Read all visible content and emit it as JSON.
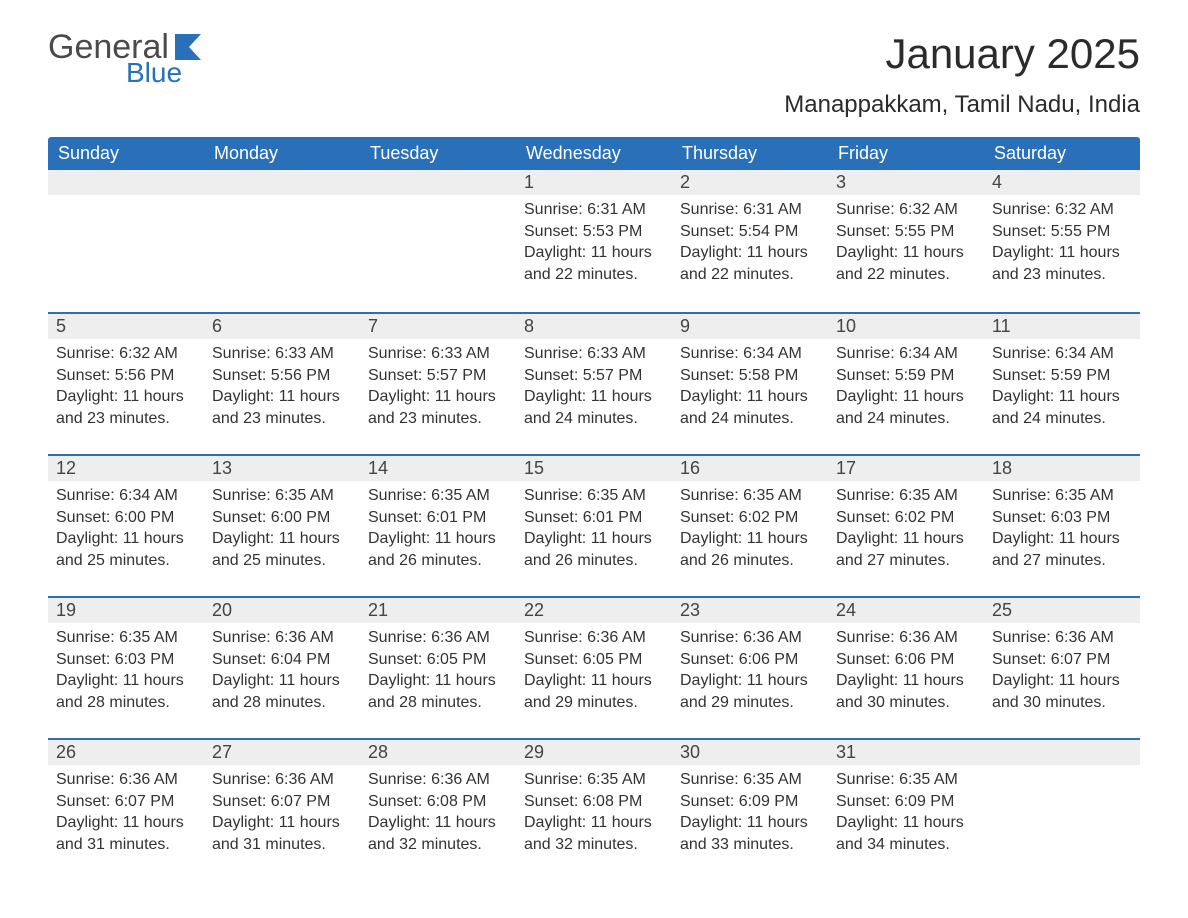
{
  "logo": {
    "main": "General",
    "sub": "Blue",
    "icon_color": "#2a70b8",
    "text_color": "#4a4a4a"
  },
  "title": "January 2025",
  "subtitle": "Manappakkam, Tamil Nadu, India",
  "colors": {
    "header_bg": "#2a70b8",
    "header_text": "#ffffff",
    "daynum_bg": "#eeeeee",
    "row_border": "#2a70b8",
    "body_text": "#333333",
    "page_bg": "#ffffff"
  },
  "fontsizes": {
    "title": 42,
    "subtitle": 24,
    "th": 18,
    "daynum": 18,
    "content": 16
  },
  "columns": [
    "Sunday",
    "Monday",
    "Tuesday",
    "Wednesday",
    "Thursday",
    "Friday",
    "Saturday"
  ],
  "weeks": [
    [
      null,
      null,
      null,
      {
        "d": "1",
        "sunrise": "Sunrise: 6:31 AM",
        "sunset": "Sunset: 5:53 PM",
        "day1": "Daylight: 11 hours",
        "day2": "and 22 minutes."
      },
      {
        "d": "2",
        "sunrise": "Sunrise: 6:31 AM",
        "sunset": "Sunset: 5:54 PM",
        "day1": "Daylight: 11 hours",
        "day2": "and 22 minutes."
      },
      {
        "d": "3",
        "sunrise": "Sunrise: 6:32 AM",
        "sunset": "Sunset: 5:55 PM",
        "day1": "Daylight: 11 hours",
        "day2": "and 22 minutes."
      },
      {
        "d": "4",
        "sunrise": "Sunrise: 6:32 AM",
        "sunset": "Sunset: 5:55 PM",
        "day1": "Daylight: 11 hours",
        "day2": "and 23 minutes."
      }
    ],
    [
      {
        "d": "5",
        "sunrise": "Sunrise: 6:32 AM",
        "sunset": "Sunset: 5:56 PM",
        "day1": "Daylight: 11 hours",
        "day2": "and 23 minutes."
      },
      {
        "d": "6",
        "sunrise": "Sunrise: 6:33 AM",
        "sunset": "Sunset: 5:56 PM",
        "day1": "Daylight: 11 hours",
        "day2": "and 23 minutes."
      },
      {
        "d": "7",
        "sunrise": "Sunrise: 6:33 AM",
        "sunset": "Sunset: 5:57 PM",
        "day1": "Daylight: 11 hours",
        "day2": "and 23 minutes."
      },
      {
        "d": "8",
        "sunrise": "Sunrise: 6:33 AM",
        "sunset": "Sunset: 5:57 PM",
        "day1": "Daylight: 11 hours",
        "day2": "and 24 minutes."
      },
      {
        "d": "9",
        "sunrise": "Sunrise: 6:34 AM",
        "sunset": "Sunset: 5:58 PM",
        "day1": "Daylight: 11 hours",
        "day2": "and 24 minutes."
      },
      {
        "d": "10",
        "sunrise": "Sunrise: 6:34 AM",
        "sunset": "Sunset: 5:59 PM",
        "day1": "Daylight: 11 hours",
        "day2": "and 24 minutes."
      },
      {
        "d": "11",
        "sunrise": "Sunrise: 6:34 AM",
        "sunset": "Sunset: 5:59 PM",
        "day1": "Daylight: 11 hours",
        "day2": "and 24 minutes."
      }
    ],
    [
      {
        "d": "12",
        "sunrise": "Sunrise: 6:34 AM",
        "sunset": "Sunset: 6:00 PM",
        "day1": "Daylight: 11 hours",
        "day2": "and 25 minutes."
      },
      {
        "d": "13",
        "sunrise": "Sunrise: 6:35 AM",
        "sunset": "Sunset: 6:00 PM",
        "day1": "Daylight: 11 hours",
        "day2": "and 25 minutes."
      },
      {
        "d": "14",
        "sunrise": "Sunrise: 6:35 AM",
        "sunset": "Sunset: 6:01 PM",
        "day1": "Daylight: 11 hours",
        "day2": "and 26 minutes."
      },
      {
        "d": "15",
        "sunrise": "Sunrise: 6:35 AM",
        "sunset": "Sunset: 6:01 PM",
        "day1": "Daylight: 11 hours",
        "day2": "and 26 minutes."
      },
      {
        "d": "16",
        "sunrise": "Sunrise: 6:35 AM",
        "sunset": "Sunset: 6:02 PM",
        "day1": "Daylight: 11 hours",
        "day2": "and 26 minutes."
      },
      {
        "d": "17",
        "sunrise": "Sunrise: 6:35 AM",
        "sunset": "Sunset: 6:02 PM",
        "day1": "Daylight: 11 hours",
        "day2": "and 27 minutes."
      },
      {
        "d": "18",
        "sunrise": "Sunrise: 6:35 AM",
        "sunset": "Sunset: 6:03 PM",
        "day1": "Daylight: 11 hours",
        "day2": "and 27 minutes."
      }
    ],
    [
      {
        "d": "19",
        "sunrise": "Sunrise: 6:35 AM",
        "sunset": "Sunset: 6:03 PM",
        "day1": "Daylight: 11 hours",
        "day2": "and 28 minutes."
      },
      {
        "d": "20",
        "sunrise": "Sunrise: 6:36 AM",
        "sunset": "Sunset: 6:04 PM",
        "day1": "Daylight: 11 hours",
        "day2": "and 28 minutes."
      },
      {
        "d": "21",
        "sunrise": "Sunrise: 6:36 AM",
        "sunset": "Sunset: 6:05 PM",
        "day1": "Daylight: 11 hours",
        "day2": "and 28 minutes."
      },
      {
        "d": "22",
        "sunrise": "Sunrise: 6:36 AM",
        "sunset": "Sunset: 6:05 PM",
        "day1": "Daylight: 11 hours",
        "day2": "and 29 minutes."
      },
      {
        "d": "23",
        "sunrise": "Sunrise: 6:36 AM",
        "sunset": "Sunset: 6:06 PM",
        "day1": "Daylight: 11 hours",
        "day2": "and 29 minutes."
      },
      {
        "d": "24",
        "sunrise": "Sunrise: 6:36 AM",
        "sunset": "Sunset: 6:06 PM",
        "day1": "Daylight: 11 hours",
        "day2": "and 30 minutes."
      },
      {
        "d": "25",
        "sunrise": "Sunrise: 6:36 AM",
        "sunset": "Sunset: 6:07 PM",
        "day1": "Daylight: 11 hours",
        "day2": "and 30 minutes."
      }
    ],
    [
      {
        "d": "26",
        "sunrise": "Sunrise: 6:36 AM",
        "sunset": "Sunset: 6:07 PM",
        "day1": "Daylight: 11 hours",
        "day2": "and 31 minutes."
      },
      {
        "d": "27",
        "sunrise": "Sunrise: 6:36 AM",
        "sunset": "Sunset: 6:07 PM",
        "day1": "Daylight: 11 hours",
        "day2": "and 31 minutes."
      },
      {
        "d": "28",
        "sunrise": "Sunrise: 6:36 AM",
        "sunset": "Sunset: 6:08 PM",
        "day1": "Daylight: 11 hours",
        "day2": "and 32 minutes."
      },
      {
        "d": "29",
        "sunrise": "Sunrise: 6:35 AM",
        "sunset": "Sunset: 6:08 PM",
        "day1": "Daylight: 11 hours",
        "day2": "and 32 minutes."
      },
      {
        "d": "30",
        "sunrise": "Sunrise: 6:35 AM",
        "sunset": "Sunset: 6:09 PM",
        "day1": "Daylight: 11 hours",
        "day2": "and 33 minutes."
      },
      {
        "d": "31",
        "sunrise": "Sunrise: 6:35 AM",
        "sunset": "Sunset: 6:09 PM",
        "day1": "Daylight: 11 hours",
        "day2": "and 34 minutes."
      },
      null
    ]
  ]
}
